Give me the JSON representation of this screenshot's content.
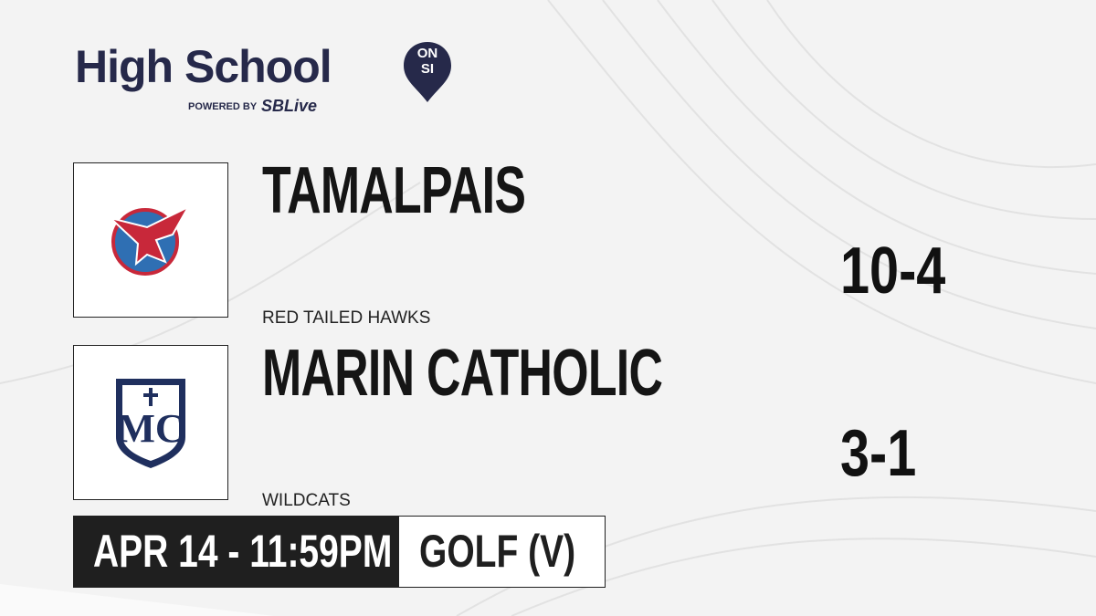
{
  "header": {
    "title": "High School",
    "badge_top": "ON",
    "badge_bottom": "SI",
    "powered_by": "POWERED BY",
    "partner": "SBLive"
  },
  "teams": [
    {
      "name": "TAMALPAIS",
      "mascot": "RED TAILED HAWKS",
      "record": "10-4"
    },
    {
      "name": "MARIN CATHOLIC",
      "mascot": "WILDCATS",
      "record": "3-1"
    }
  ],
  "footer": {
    "datetime": "APR 14 - 11:59PM",
    "sport": "GOLF (V)"
  }
}
